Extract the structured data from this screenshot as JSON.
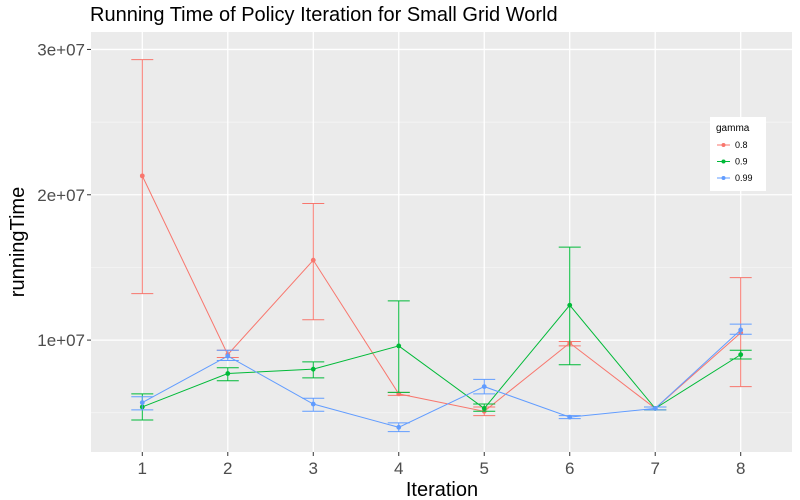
{
  "chart_data": {
    "type": "line",
    "title": "Running Time of Policy Iteration for Small Grid World",
    "xlabel": "Iteration",
    "ylabel": "runningTime",
    "categories": [
      "1",
      "2",
      "3",
      "4",
      "5",
      "6",
      "7",
      "8"
    ],
    "y_tick_labels": [
      "1e+07",
      "2e+07",
      "3e+07"
    ],
    "y_ticks": [
      10000000,
      20000000,
      30000000
    ],
    "ylim": [
      2300000,
      31200000
    ],
    "xlim": [
      0.4,
      8.6
    ],
    "grid": true,
    "legend": {
      "title": "gamma",
      "position": "right"
    },
    "series": [
      {
        "name": "0.8",
        "color": "#F8766D",
        "values": [
          21300000,
          9000000,
          15500000,
          6300000,
          5100000,
          9800000,
          5300000,
          10500000
        ],
        "error_low": [
          13200000,
          8800000,
          11400000,
          6200000,
          4800000,
          9600000,
          5200000,
          6800000
        ],
        "error_high": [
          29300000,
          9300000,
          19400000,
          6400000,
          5400000,
          9900000,
          5400000,
          14300000
        ]
      },
      {
        "name": "0.9",
        "color": "#00BA38",
        "values": [
          5400000,
          7700000,
          8000000,
          9600000,
          5300000,
          12400000,
          5300000,
          9000000
        ],
        "error_low": [
          4500000,
          7200000,
          7400000,
          6400000,
          5100000,
          8300000,
          5200000,
          8700000
        ],
        "error_high": [
          6300000,
          8100000,
          8500000,
          12700000,
          5600000,
          16400000,
          5400000,
          9300000
        ]
      },
      {
        "name": "0.99",
        "color": "#619CFF",
        "values": [
          5700000,
          8900000,
          5600000,
          4000000,
          6800000,
          4700000,
          5300000,
          10700000
        ],
        "error_low": [
          5200000,
          8600000,
          5100000,
          3700000,
          6300000,
          4600000,
          5200000,
          10400000
        ],
        "error_high": [
          6100000,
          9300000,
          6000000,
          4300000,
          7300000,
          4800000,
          5400000,
          11100000
        ]
      }
    ]
  }
}
